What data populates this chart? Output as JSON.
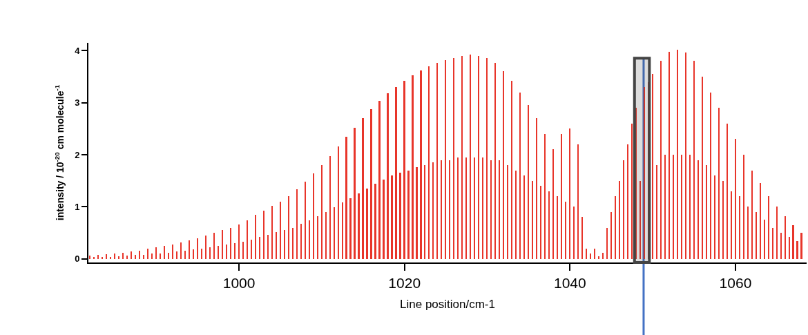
{
  "chart_data": {
    "type": "bar",
    "xlabel": "Line position/cm-1",
    "ylabel": "intensity / 10$^{-20}$ cm molecule$^{-1}$",
    "x": [
      982,
      982.5,
      983,
      983.5,
      984,
      984.5,
      985,
      985.5,
      986,
      986.5,
      987,
      987.5,
      988,
      988.5,
      989,
      989.5,
      990,
      990.5,
      991,
      991.5,
      992,
      992.5,
      993,
      993.5,
      994,
      994.5,
      995,
      995.5,
      996,
      996.5,
      997,
      997.5,
      998,
      998.5,
      999,
      999.5,
      1000,
      1000.5,
      1001,
      1001.5,
      1002,
      1002.5,
      1003,
      1003.5,
      1004,
      1004.5,
      1005,
      1005.5,
      1006,
      1006.5,
      1007,
      1007.5,
      1008,
      1008.5,
      1009,
      1009.5,
      1010,
      1010.5,
      1011,
      1011.5,
      1012,
      1012.5,
      1013,
      1013.5,
      1014,
      1014.5,
      1015,
      1015.5,
      1016,
      1016.5,
      1017,
      1017.5,
      1018,
      1018.5,
      1019,
      1019.5,
      1020,
      1020.5,
      1021,
      1021.5,
      1022,
      1022.5,
      1023,
      1023.5,
      1024,
      1024.5,
      1025,
      1025.5,
      1026,
      1026.5,
      1027,
      1027.5,
      1028,
      1028.5,
      1029,
      1029.5,
      1030,
      1030.5,
      1031,
      1031.5,
      1032,
      1032.5,
      1033,
      1033.5,
      1034,
      1034.5,
      1035,
      1035.5,
      1036,
      1036.5,
      1037,
      1037.5,
      1038,
      1038.5,
      1039,
      1039.5,
      1040,
      1040.5,
      1041,
      1041.5,
      1042,
      1042.5,
      1043,
      1043.5,
      1044,
      1044.5,
      1045,
      1045.5,
      1046,
      1046.5,
      1047,
      1047.5,
      1048,
      1048.5,
      1049,
      1049.5,
      1050,
      1050.5,
      1051,
      1051.5,
      1052,
      1052.5,
      1053,
      1053.5,
      1054,
      1054.5,
      1055,
      1055.5,
      1056,
      1056.5,
      1057,
      1057.5,
      1058,
      1058.5,
      1059,
      1059.5,
      1060,
      1060.5,
      1061,
      1061.5,
      1062,
      1062.5,
      1063,
      1063.5,
      1064,
      1064.5,
      1065,
      1065.5,
      1066,
      1066.5,
      1067,
      1067.5,
      1068
    ],
    "series": [
      {
        "color": "#e8352a",
        "values": [
          0.06,
          0.03,
          0.08,
          0.04,
          0.09,
          0.04,
          0.1,
          0.05,
          0.12,
          0.06,
          0.14,
          0.07,
          0.16,
          0.08,
          0.19,
          0.1,
          0.22,
          0.1,
          0.25,
          0.12,
          0.28,
          0.14,
          0.32,
          0.16,
          0.36,
          0.18,
          0.4,
          0.2,
          0.45,
          0.22,
          0.5,
          0.25,
          0.55,
          0.28,
          0.6,
          0.3,
          0.66,
          0.33,
          0.74,
          0.37,
          0.84,
          0.42,
          0.92,
          0.46,
          1.02,
          0.51,
          1.1,
          0.55,
          1.2,
          0.6,
          1.34,
          0.67,
          1.48,
          0.74,
          1.64,
          0.82,
          1.8,
          0.9,
          1.98,
          0.99,
          2.16,
          1.08,
          2.34,
          1.17,
          2.52,
          1.26,
          2.7,
          1.35,
          2.88,
          1.44,
          3.04,
          1.52,
          3.18,
          1.6,
          3.3,
          1.65,
          3.42,
          1.7,
          3.52,
          1.76,
          3.62,
          1.8,
          3.7,
          1.85,
          3.76,
          1.9,
          3.82,
          1.9,
          3.86,
          1.95,
          3.9,
          1.95,
          3.92,
          1.95,
          3.9,
          1.95,
          3.86,
          1.9,
          3.76,
          1.9,
          3.6,
          1.8,
          3.42,
          1.7,
          3.2,
          1.6,
          2.96,
          1.5,
          2.7,
          1.4,
          2.4,
          1.3,
          2.1,
          1.2,
          2.4,
          1.1,
          2.5,
          1.0,
          2.2,
          0.8,
          0.2,
          0.1,
          0.2,
          0.05,
          0.12,
          0.6,
          0.9,
          1.2,
          1.5,
          1.9,
          2.2,
          2.6,
          2.9,
          1.5,
          3.3,
          3.4,
          3.55,
          1.8,
          3.8,
          2.0,
          3.98,
          2.0,
          4.02,
          2.0,
          3.96,
          2.0,
          3.8,
          1.9,
          3.5,
          1.8,
          3.2,
          1.6,
          2.9,
          1.5,
          2.6,
          1.3,
          2.3,
          1.2,
          2.0,
          1.0,
          1.7,
          0.9,
          1.45,
          0.75,
          1.2,
          0.6,
          1.0,
          0.5,
          0.82,
          0.42,
          0.65,
          0.34,
          0.5
        ]
      }
    ],
    "xlim": [
      981.8,
      1068.6
    ],
    "xticks": [
      1000,
      1020,
      1040,
      1060
    ],
    "ylim": [
      -0.07,
      4.15
    ],
    "yticks": [
      0,
      1,
      2,
      3,
      4
    ],
    "bands": [
      {
        "axis": "x",
        "from": 1047.8,
        "to": 1049.6,
        "color": "#444444"
      }
    ],
    "ref_lines": [
      {
        "axis": "x",
        "value": 1048.9,
        "color": "#4472c4"
      }
    ]
  }
}
